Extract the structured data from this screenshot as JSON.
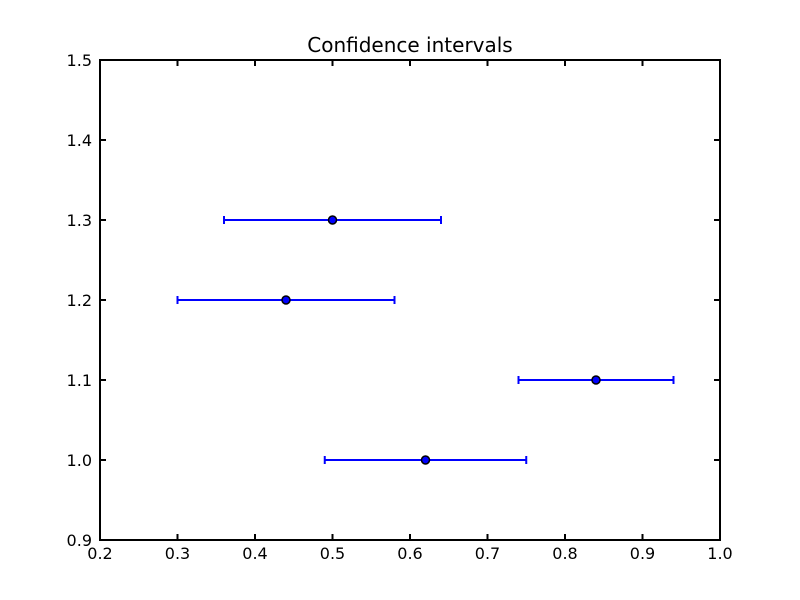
{
  "figure": {
    "background_color": "#ffffff"
  },
  "chart_data": {
    "type": "scatter",
    "subtype": "horizontal-errorbar",
    "title": "Confidence intervals",
    "xlabel": "",
    "ylabel": "",
    "xlim": [
      0.2,
      1.0
    ],
    "ylim": [
      0.9,
      1.5
    ],
    "xticks": [
      "0.2",
      "0.3",
      "0.4",
      "0.5",
      "0.6",
      "0.7",
      "0.8",
      "0.9",
      "1.0"
    ],
    "yticks": [
      "0.9",
      "1.0",
      "1.1",
      "1.2",
      "1.3",
      "1.4",
      "1.5"
    ],
    "grid": false,
    "legend": null,
    "tick_style": "inward-all-four-sides",
    "axis_color": "#000000",
    "series": [
      {
        "name": "confidence-intervals",
        "color": "#0000ff",
        "marker": "circle",
        "marker_edge_color": "#000000",
        "points": [
          {
            "y": 1.0,
            "x": 0.62,
            "xerr": 0.13,
            "x_low": 0.49,
            "x_high": 0.75
          },
          {
            "y": 1.1,
            "x": 0.84,
            "xerr": 0.1,
            "x_low": 0.74,
            "x_high": 0.94
          },
          {
            "y": 1.2,
            "x": 0.44,
            "xerr": 0.14,
            "x_low": 0.3,
            "x_high": 0.58
          },
          {
            "y": 1.3,
            "x": 0.5,
            "xerr": 0.14,
            "x_low": 0.36,
            "x_high": 0.64
          }
        ]
      }
    ]
  }
}
